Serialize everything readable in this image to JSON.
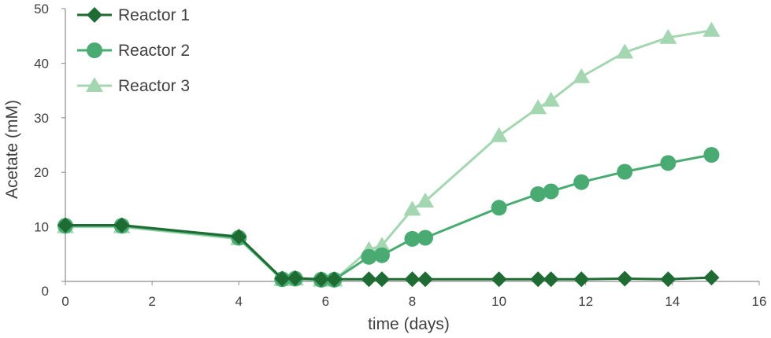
{
  "chart_data": {
    "type": "line",
    "xlabel": "time (days)",
    "ylabel": "Acetate (mM)",
    "xlim": [
      0,
      16
    ],
    "ylim": [
      0,
      50
    ],
    "x_ticks": [
      0,
      2,
      4,
      6,
      8,
      10,
      12,
      14,
      16
    ],
    "y_ticks": [
      0,
      10,
      20,
      30,
      40,
      50
    ],
    "grid": false,
    "legend": "top-left",
    "series": [
      {
        "name": "Reactor 1",
        "marker": "diamond",
        "color": "#1e6b33",
        "x": [
          0,
          1.3,
          4,
          5,
          5.3,
          5.9,
          6.2,
          7,
          7.3,
          8,
          8.3,
          10,
          10.9,
          11.2,
          11.9,
          12.9,
          13.9,
          14.9
        ],
        "y": [
          10.3,
          10.3,
          8.2,
          0.5,
          0.6,
          0.4,
          0.4,
          0.4,
          0.4,
          0.4,
          0.4,
          0.4,
          0.4,
          0.4,
          0.4,
          0.5,
          0.4,
          0.7
        ]
      },
      {
        "name": "Reactor 2",
        "marker": "circle",
        "color": "#4aab72",
        "x": [
          0,
          1.3,
          4,
          5,
          5.3,
          5.9,
          6.2,
          7,
          7.3,
          8,
          8.3,
          10,
          10.9,
          11.2,
          11.9,
          12.9,
          13.9,
          14.9
        ],
        "y": [
          10.2,
          10.2,
          8.0,
          0.4,
          0.5,
          0.3,
          0.3,
          4.5,
          4.8,
          7.8,
          8.0,
          13.5,
          16.0,
          16.5,
          18.2,
          20.1,
          21.7,
          23.2
        ]
      },
      {
        "name": "Reactor 3",
        "marker": "triangle",
        "color": "#a3d6b1",
        "x": [
          0,
          1.3,
          4,
          5,
          5.3,
          5.9,
          6.2,
          7,
          7.3,
          8,
          8.3,
          10,
          10.9,
          11.2,
          11.9,
          12.9,
          13.9,
          14.9
        ],
        "y": [
          10.0,
          10.0,
          7.8,
          0.3,
          0.4,
          0.2,
          0.2,
          5.8,
          6.6,
          13.2,
          14.7,
          26.7,
          31.8,
          33.2,
          37.5,
          42.0,
          44.7,
          46.0
        ]
      }
    ]
  }
}
